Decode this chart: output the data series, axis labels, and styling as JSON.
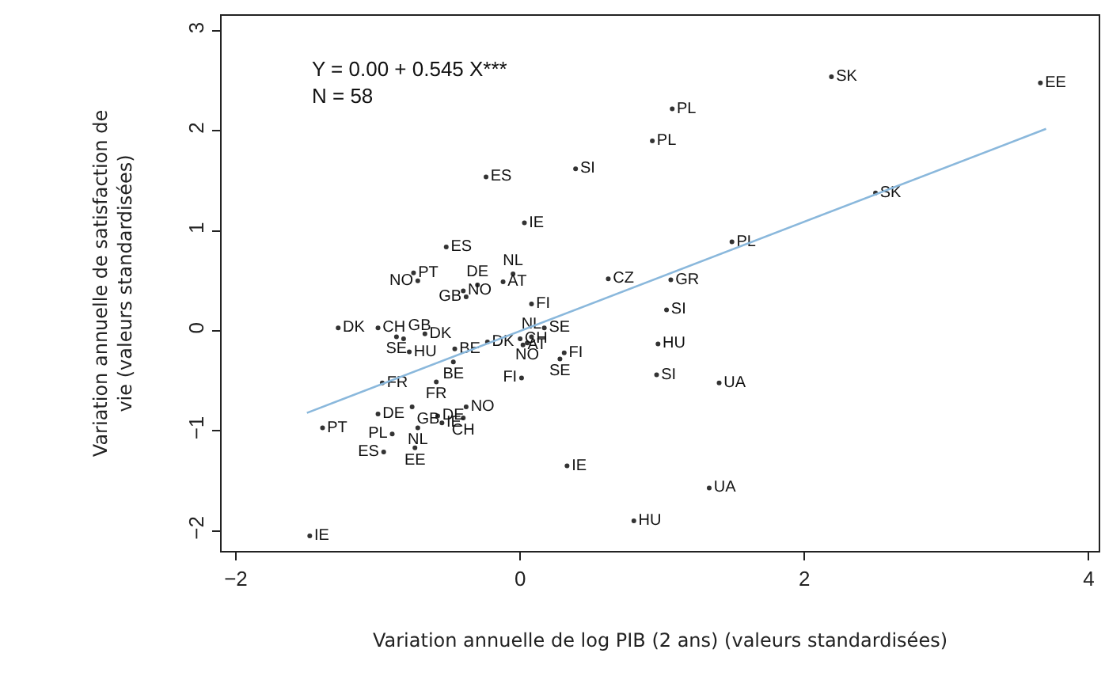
{
  "chart_data": {
    "type": "scatter",
    "xlabel": "Variation annuelle de log PIB (2 ans) (valeurs standardisées)",
    "ylabel": "Variation annuelle de satisfaction de\nvie (valeurs standardisées)",
    "annotations": [
      "Y = 0.00 + 0.545 X***",
      "N = 58"
    ],
    "xlim": [
      -2.1,
      4.07
    ],
    "ylim": [
      -2.2,
      3.15
    ],
    "xticks": [
      -2,
      0,
      2,
      4
    ],
    "yticks": [
      -2,
      -1,
      0,
      1,
      2,
      3
    ],
    "grid": false,
    "marker": "circle",
    "series": [
      {
        "color": "#333333",
        "x": [
          -0.24,
          0.39,
          0.03,
          -0.52,
          1.07,
          0.93,
          2.19,
          3.66,
          2.5,
          1.49,
          1.06,
          1.03,
          0.97,
          0.96,
          1.4,
          1.33,
          0.8,
          -0.75,
          -0.72,
          -0.4,
          -0.38,
          -0.3,
          -0.12,
          -0.05,
          0.08,
          0.62,
          -1.28,
          -1.0,
          -0.87,
          -0.67,
          -0.78,
          -0.46,
          -0.47,
          -0.23,
          0.0,
          0.05,
          0.17,
          0.31,
          0.28,
          0.01,
          -0.97,
          -0.59,
          -1.0,
          -0.76,
          -0.38,
          -0.4,
          -0.9,
          -0.72,
          -0.55,
          -0.96,
          -0.74,
          -1.39,
          0.33,
          -1.48,
          0.02,
          0.08,
          -0.82,
          -0.58
        ],
        "values": [
          1.54,
          1.62,
          1.08,
          0.84,
          2.22,
          1.9,
          2.54,
          2.48,
          1.38,
          0.89,
          0.51,
          0.21,
          -0.13,
          -0.44,
          -0.52,
          -1.57,
          -1.9,
          0.58,
          0.5,
          0.4,
          0.34,
          0.46,
          0.49,
          0.57,
          0.27,
          0.52,
          0.03,
          0.03,
          -0.06,
          -0.03,
          -0.21,
          -0.18,
          -0.31,
          -0.11,
          -0.08,
          -0.12,
          0.03,
          -0.22,
          -0.28,
          -0.47,
          -0.52,
          -0.51,
          -0.83,
          -0.76,
          -0.76,
          -0.87,
          -1.03,
          -0.97,
          -0.92,
          -1.21,
          -1.17,
          -0.97,
          -1.35,
          -2.05,
          -0.14,
          -0.06,
          -0.08,
          -0.85
        ],
        "value_labels": [
          "ES",
          "SI",
          "IE",
          "ES",
          "PL",
          "PL",
          "SK",
          "EE",
          "SK",
          "PL",
          "GR",
          "SI",
          "HU",
          "SI",
          "UA",
          "UA",
          "HU",
          "PT",
          "NO",
          "NO",
          "GB",
          "DE",
          "AT",
          "NL",
          "FI",
          "CZ",
          "DK",
          "CH",
          "SE",
          "DK",
          "HU",
          "BE",
          "BE",
          "DK",
          "CH",
          "NO",
          "SE",
          "FI",
          "SE",
          "FI",
          "FR",
          "FR",
          "DE",
          "GB",
          "NO",
          "CH",
          "PL",
          "NL",
          "IE",
          "ES",
          "EE",
          "PT",
          "IE",
          "IE",
          "AT",
          "NL",
          "GB",
          "DE"
        ]
      },
      {
        "type": "line",
        "color": "#8ab8dc",
        "x": [
          -1.5,
          3.7
        ],
        "values": [
          -0.82,
          2.02
        ],
        "marker": "none"
      }
    ]
  }
}
